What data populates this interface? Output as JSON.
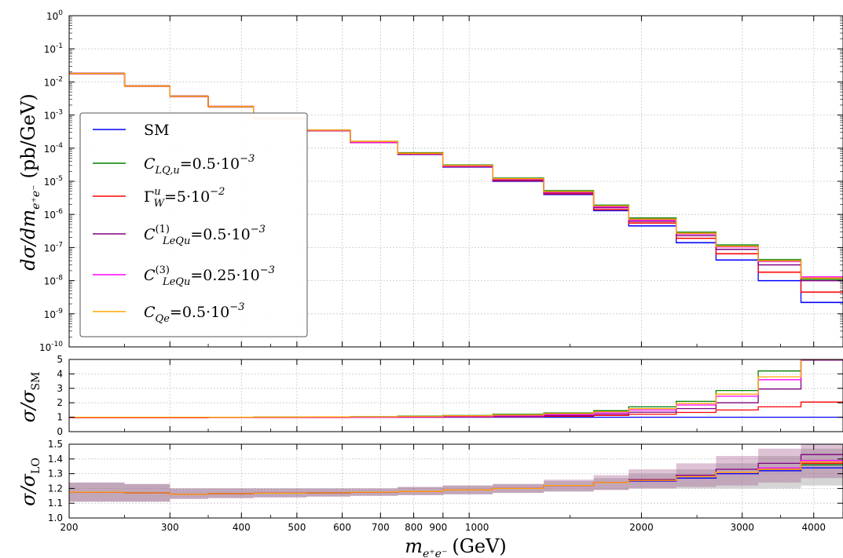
{
  "chart_data": [
    {
      "type": "line",
      "subtype": "step-histogram",
      "ylabel_main": "dσ/dm",
      "ylabel_sub": "e⁺e⁻",
      "ylabel_unit": "(pb/GeV)",
      "yscale": "log",
      "ylim": [
        1e-10,
        1
      ],
      "yticks": [
        {
          "exp": "0"
        },
        {
          "exp": "-1"
        },
        {
          "exp": "-2"
        },
        {
          "exp": "-3"
        },
        {
          "exp": "-4"
        },
        {
          "exp": "-5"
        },
        {
          "exp": "-6"
        },
        {
          "exp": "-7"
        },
        {
          "exp": "-8"
        },
        {
          "exp": "-9"
        },
        {
          "exp": "-10"
        }
      ],
      "grid": true,
      "legend_position": "left",
      "bin_edges": [
        200,
        250,
        300,
        350,
        420,
        520,
        620,
        750,
        900,
        1100,
        1350,
        1650,
        1900,
        2300,
        2700,
        3200,
        3800,
        4500
      ],
      "series": [
        {
          "name": "SM",
          "color": "#0000ff",
          "values": [
            0.018,
            0.0075,
            0.0037,
            0.0018,
            0.00078,
            0.00034,
            0.00015,
            6.5e-05,
            2.7e-05,
            1e-05,
            4e-06,
            1.3e-06,
            4.5e-07,
            1.4e-07,
            4.2e-08,
            1e-08,
            2.2e-09
          ]
        },
        {
          "name": "C_{LQ,u} = 0.5·10⁻³",
          "color": "#008000",
          "values": [
            0.018,
            0.0075,
            0.0037,
            0.0018,
            0.00078,
            0.00035,
            0.00016,
            7.3e-05,
            3.1e-05,
            1.25e-05,
            5.2e-06,
            1.9e-06,
            7.8e-07,
            2.9e-07,
            1.2e-07,
            4.3e-08,
            1.1e-08
          ]
        },
        {
          "name": "Γ_W^u = 5·10⁻²",
          "color": "#ff0000",
          "values": [
            0.018,
            0.0075,
            0.0037,
            0.0018,
            0.00078,
            0.00034,
            0.00015,
            6.6e-05,
            2.8e-05,
            1.05e-05,
            4.2e-06,
            1.4e-06,
            5.5e-07,
            1.9e-07,
            6.5e-08,
            1.8e-08,
            4.5e-09
          ]
        },
        {
          "name": "C_{LeQu}^{(1)} = 0.5·10⁻³",
          "color": "#800080",
          "values": [
            0.018,
            0.0075,
            0.0037,
            0.0018,
            0.00078,
            0.00034,
            0.00015,
            6.8e-05,
            2.9e-05,
            1.1e-05,
            4.5e-06,
            1.6e-06,
            6.2e-07,
            2.3e-07,
            8.8e-08,
            3e-08,
            1e-08
          ]
        },
        {
          "name": "C_{LeQu}^{(3)} = 0.25·10⁻³",
          "color": "#ff00ff",
          "values": [
            0.018,
            0.0075,
            0.0037,
            0.0018,
            0.00078,
            0.00034,
            0.00015,
            6.9e-05,
            2.9e-05,
            1.15e-05,
            4.7e-06,
            1.7e-06,
            6.8e-07,
            2.6e-07,
            1.05e-07,
            3.8e-08,
            1.3e-08
          ]
        },
        {
          "name": "C_{Qe} = 0.5·10⁻³",
          "color": "#ffa500",
          "values": [
            0.018,
            0.0075,
            0.0037,
            0.0018,
            0.00078,
            0.00035,
            0.00016,
            7e-05,
            3e-05,
            1.2e-05,
            4.9e-06,
            1.8e-06,
            7.2e-07,
            2.7e-07,
            1.1e-07,
            4e-08,
            1.2e-08
          ]
        }
      ]
    },
    {
      "type": "line",
      "subtype": "step-histogram",
      "ylabel_main": "σ/σ",
      "ylabel_sub": "SM",
      "ylim": [
        0,
        5
      ],
      "yticks": [
        "0",
        "1",
        "2",
        "3",
        "4",
        "5"
      ],
      "grid": true,
      "series": [
        {
          "name": "SM",
          "color": "#0000ff",
          "values": [
            1,
            1,
            1,
            1,
            1,
            1,
            1,
            1,
            1,
            1,
            1,
            1,
            1,
            1,
            1,
            1,
            1
          ]
        },
        {
          "name": "C_{LQ,u}",
          "color": "#008000",
          "values": [
            1.0,
            1.0,
            1.0,
            1.0,
            1.01,
            1.02,
            1.04,
            1.08,
            1.12,
            1.2,
            1.3,
            1.45,
            1.72,
            2.1,
            2.85,
            4.2,
            5.0
          ]
        },
        {
          "name": "Γ_W^u",
          "color": "#ff0000",
          "values": [
            0.97,
            0.97,
            0.97,
            0.98,
            0.98,
            0.98,
            0.99,
            1.0,
            1.02,
            1.04,
            1.07,
            1.12,
            1.2,
            1.33,
            1.5,
            1.72,
            2.05
          ]
        },
        {
          "name": "C_{LeQu}^{(1)}",
          "color": "#800080",
          "values": [
            1.0,
            1.0,
            1.0,
            1.0,
            1.0,
            1.0,
            1.0,
            1.02,
            1.04,
            1.07,
            1.12,
            1.2,
            1.35,
            1.6,
            2.0,
            2.95,
            4.95
          ]
        },
        {
          "name": "C_{LeQu}^{(3)}",
          "color": "#ff00ff",
          "values": [
            1.0,
            1.0,
            1.0,
            1.0,
            1.0,
            1.0,
            1.0,
            1.03,
            1.06,
            1.1,
            1.18,
            1.3,
            1.5,
            1.85,
            2.45,
            3.6,
            5.0
          ]
        },
        {
          "name": "C_{Qe}",
          "color": "#ffa500",
          "values": [
            1.0,
            1.0,
            1.0,
            1.0,
            1.01,
            1.02,
            1.03,
            1.06,
            1.1,
            1.15,
            1.25,
            1.38,
            1.6,
            1.95,
            2.6,
            3.8,
            5.0
          ]
        }
      ]
    },
    {
      "type": "line",
      "subtype": "step-histogram-with-bands",
      "ylabel_main": "σ/σ",
      "ylabel_sub": "LO",
      "ylim": [
        1.0,
        1.5
      ],
      "yticks": [
        "1.0",
        "1.1",
        "1.2",
        "1.3",
        "1.4",
        "1.5"
      ],
      "grid": true,
      "xlabel_main": "m",
      "xlabel_sub": "e⁺e⁻",
      "xlabel_unit": "(GeV)",
      "xscale": "log",
      "xlim": [
        200,
        4500
      ],
      "xticks": [
        {
          "value": 200,
          "label": "200"
        },
        {
          "value": 300,
          "label": "300"
        },
        {
          "value": 400,
          "label": "400"
        },
        {
          "value": 500,
          "label": "500"
        },
        {
          "value": 600,
          "label": "600"
        },
        {
          "value": 700,
          "label": "700"
        },
        {
          "value": 800,
          "label": "800"
        },
        {
          "value": 900,
          "label": "900"
        },
        {
          "value": 1000,
          "label": "1000"
        },
        {
          "value": 2000,
          "label": "2000"
        },
        {
          "value": 3000,
          "label": "3000"
        },
        {
          "value": 4000,
          "label": "4000"
        }
      ],
      "series": [
        {
          "name": "SM",
          "color": "#0000ff",
          "values": [
            1.175,
            1.17,
            1.16,
            1.165,
            1.168,
            1.17,
            1.175,
            1.18,
            1.19,
            1.2,
            1.22,
            1.24,
            1.25,
            1.27,
            1.3,
            1.32,
            1.34
          ],
          "band_low": [
            1.11,
            1.11,
            1.13,
            1.135,
            1.14,
            1.145,
            1.15,
            1.155,
            1.16,
            1.17,
            1.18,
            1.19,
            1.2,
            1.2,
            1.2,
            1.2,
            1.22
          ],
          "band_high": [
            1.24,
            1.23,
            1.2,
            1.2,
            1.2,
            1.2,
            1.2,
            1.21,
            1.22,
            1.23,
            1.25,
            1.27,
            1.3,
            1.33,
            1.37,
            1.42,
            1.47
          ]
        },
        {
          "name": "C_{LeQu}^{(1)}",
          "color": "#800080",
          "values": [
            1.175,
            1.17,
            1.16,
            1.165,
            1.168,
            1.17,
            1.175,
            1.18,
            1.19,
            1.2,
            1.22,
            1.24,
            1.26,
            1.29,
            1.33,
            1.37,
            1.43
          ],
          "band_low": [
            1.11,
            1.11,
            1.13,
            1.135,
            1.14,
            1.145,
            1.15,
            1.155,
            1.16,
            1.17,
            1.18,
            1.19,
            1.2,
            1.21,
            1.22,
            1.24,
            1.27
          ],
          "band_high": [
            1.24,
            1.23,
            1.2,
            1.2,
            1.2,
            1.2,
            1.2,
            1.21,
            1.22,
            1.23,
            1.26,
            1.29,
            1.33,
            1.37,
            1.42,
            1.47,
            1.5
          ]
        },
        {
          "name": "C_{LQ,u}",
          "color": "#008000",
          "values": [
            1.175,
            1.17,
            1.16,
            1.165,
            1.168,
            1.17,
            1.175,
            1.18,
            1.19,
            1.2,
            1.22,
            1.24,
            1.255,
            1.28,
            1.31,
            1.33,
            1.36
          ]
        },
        {
          "name": "Γ_W^u",
          "color": "#ff0000",
          "values": [
            1.175,
            1.17,
            1.16,
            1.165,
            1.168,
            1.17,
            1.175,
            1.18,
            1.19,
            1.2,
            1.22,
            1.24,
            1.255,
            1.28,
            1.31,
            1.33,
            1.37
          ]
        },
        {
          "name": "C_{LeQu}^{(3)}",
          "color": "#ff00ff",
          "values": [
            1.175,
            1.17,
            1.16,
            1.165,
            1.168,
            1.17,
            1.175,
            1.18,
            1.19,
            1.2,
            1.22,
            1.24,
            1.255,
            1.28,
            1.31,
            1.34,
            1.39
          ]
        },
        {
          "name": "C_{Qe}",
          "color": "#ffa500",
          "values": [
            1.175,
            1.17,
            1.16,
            1.165,
            1.168,
            1.17,
            1.175,
            1.18,
            1.19,
            1.2,
            1.22,
            1.24,
            1.255,
            1.28,
            1.31,
            1.33,
            1.38
          ]
        }
      ]
    }
  ],
  "legend": {
    "items": [
      {
        "color": "#0000ff",
        "parts": [
          {
            "t": "SM",
            "roman": true
          }
        ]
      },
      {
        "color": "#008000",
        "parts": [
          {
            "t": "C"
          },
          {
            "t": "LQ,u",
            "sub": true
          },
          {
            "t": "=0.5·10",
            "roman": true
          },
          {
            "t": "−3",
            "sup": true
          }
        ]
      },
      {
        "color": "#ff0000",
        "parts": [
          {
            "t": "Γ",
            "roman": true
          },
          {
            "t": "u",
            "sup": true
          },
          {
            "t": "W",
            "sub": true,
            "back": true
          },
          {
            "t": "=5·10",
            "roman": true
          },
          {
            "t": "−2",
            "sup": true
          }
        ]
      },
      {
        "color": "#800080",
        "parts": [
          {
            "t": "C"
          },
          {
            "t": "(1)",
            "sup": true,
            "roman": true
          },
          {
            "t": "LeQu",
            "sub": true,
            "back": true
          },
          {
            "t": "=0.5·10",
            "roman": true
          },
          {
            "t": "−3",
            "sup": true
          }
        ]
      },
      {
        "color": "#ff00ff",
        "parts": [
          {
            "t": "C"
          },
          {
            "t": "(3)",
            "sup": true,
            "roman": true
          },
          {
            "t": "LeQu",
            "sub": true,
            "back": true
          },
          {
            "t": "=0.25·10",
            "roman": true
          },
          {
            "t": "−3",
            "sup": true
          }
        ]
      },
      {
        "color": "#ffa500",
        "parts": [
          {
            "t": "C"
          },
          {
            "t": "Qe",
            "sub": true
          },
          {
            "t": "=0.5·10",
            "roman": true
          },
          {
            "t": "−3",
            "sup": true
          }
        ]
      }
    ]
  }
}
